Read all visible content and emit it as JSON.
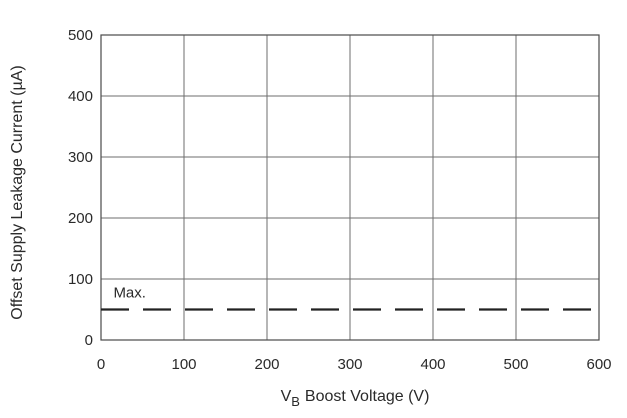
{
  "chart_data": {
    "type": "line",
    "title": "",
    "xlabel": "Boost Voltage (V)",
    "xlabel_prefix": "V",
    "xlabel_subscript": "B",
    "ylabel": "Offset Supply Leakage Current (µA)",
    "xlim": [
      0,
      600
    ],
    "ylim": [
      0,
      500
    ],
    "xticks": [
      0,
      100,
      200,
      300,
      400,
      500,
      600
    ],
    "yticks": [
      0,
      100,
      200,
      300,
      400,
      500
    ],
    "xtick_labels": [
      "0",
      "100",
      "200",
      "300",
      "400",
      "500",
      "600"
    ],
    "ytick_labels": [
      "0",
      "100",
      "200",
      "300",
      "400",
      "500"
    ],
    "grid": true,
    "series": [
      {
        "name": "Max.",
        "style": "dashed",
        "color": "#222222",
        "x": [
          0,
          600
        ],
        "y": [
          50,
          50
        ]
      }
    ],
    "annotations": [
      {
        "text": "Max.",
        "x": 15,
        "y": 50
      }
    ]
  }
}
